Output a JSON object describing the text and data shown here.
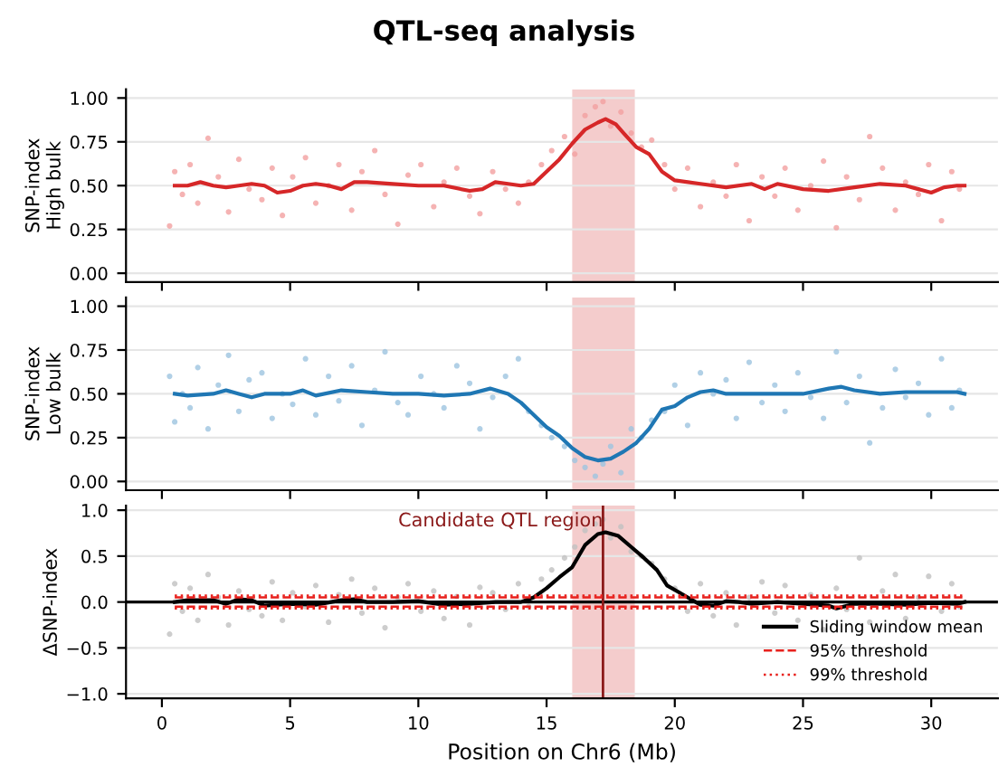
{
  "chart_data": [
    {
      "type": "scatter",
      "title": "QTL-seq analysis",
      "ylabel": "SNP-index\nHigh bulk",
      "xlim": [
        -1.4,
        32.6
      ],
      "xticks": [
        0,
        5,
        10,
        15,
        20,
        25,
        30
      ],
      "ylim": [
        -0.05,
        1.05
      ],
      "yticks": [
        {
          "value": 0,
          "label": "0.00"
        },
        {
          "value": 0.25,
          "label": "0.25"
        },
        {
          "value": 0.5,
          "label": "0.50"
        },
        {
          "value": 0.75,
          "label": "0.75"
        },
        {
          "value": 1,
          "label": "1.00"
        }
      ],
      "grid": "y",
      "tick_labels": "y",
      "bands": [
        {
          "axis": "x",
          "from": 16,
          "to": 18.44,
          "color": "#f4cccc"
        }
      ],
      "series": [
        {
          "color": "#f2a0a0",
          "x": [
            0.3,
            0.5,
            0.8,
            1.1,
            1.4,
            1.8,
            2.2,
            2.6,
            3.0,
            3.4,
            3.9,
            4.3,
            4.7,
            5.1,
            5.6,
            6.0,
            6.5,
            6.9,
            7.4,
            7.8,
            8.3,
            8.7,
            9.2,
            9.6,
            10.1,
            10.6,
            11.0,
            11.5,
            12.0,
            12.4,
            12.9,
            13.4,
            13.9,
            14.3,
            14.8,
            15.2,
            15.7,
            16.1,
            16.5,
            16.9,
            17.2,
            17.5,
            17.9,
            18.3,
            18.7,
            19.1,
            19.6,
            20.0,
            20.5,
            21.0,
            21.5,
            22.0,
            22.4,
            22.9,
            23.4,
            23.9,
            24.3,
            24.8,
            25.3,
            25.8,
            26.3,
            26.7,
            27.2,
            27.6,
            28.1,
            28.6,
            29.0,
            29.5,
            29.9,
            30.4,
            30.8,
            31.1
          ],
          "values": [
            0.27,
            0.58,
            0.45,
            0.62,
            0.4,
            0.77,
            0.55,
            0.35,
            0.65,
            0.48,
            0.42,
            0.6,
            0.33,
            0.55,
            0.66,
            0.4,
            0.5,
            0.62,
            0.36,
            0.58,
            0.7,
            0.45,
            0.28,
            0.56,
            0.62,
            0.38,
            0.52,
            0.6,
            0.44,
            0.34,
            0.58,
            0.48,
            0.4,
            0.52,
            0.62,
            0.7,
            0.78,
            0.68,
            0.9,
            0.95,
            0.98,
            0.84,
            0.92,
            0.8,
            0.72,
            0.76,
            0.62,
            0.48,
            0.6,
            0.38,
            0.52,
            0.44,
            0.62,
            0.3,
            0.55,
            0.44,
            0.6,
            0.36,
            0.5,
            0.64,
            0.26,
            0.55,
            0.42,
            0.78,
            0.6,
            0.36,
            0.52,
            0.45,
            0.62,
            0.3,
            0.58,
            0.48
          ]
        },
        {
          "type": "line",
          "color": "#d62728",
          "line_style": "solid",
          "x": [
            0.5,
            1,
            1.5,
            2,
            2.5,
            3,
            3.5,
            4,
            4.5,
            5,
            5.5,
            6,
            6.5,
            7,
            7.5,
            8,
            9,
            10,
            11,
            12,
            12.5,
            13,
            13.5,
            14,
            14.5,
            15,
            15.5,
            16,
            16.5,
            17,
            17.3,
            17.7,
            18,
            18.5,
            19,
            19.5,
            20,
            21,
            22,
            23,
            23.5,
            24,
            25,
            26,
            27,
            28,
            29,
            29.5,
            30,
            30.5,
            31,
            31.3
          ],
          "values": [
            0.5,
            0.5,
            0.52,
            0.5,
            0.49,
            0.5,
            0.51,
            0.5,
            0.46,
            0.47,
            0.5,
            0.51,
            0.5,
            0.48,
            0.52,
            0.52,
            0.51,
            0.5,
            0.5,
            0.47,
            0.48,
            0.52,
            0.51,
            0.5,
            0.51,
            0.58,
            0.65,
            0.74,
            0.82,
            0.86,
            0.88,
            0.85,
            0.8,
            0.72,
            0.68,
            0.58,
            0.53,
            0.51,
            0.49,
            0.51,
            0.48,
            0.51,
            0.48,
            0.47,
            0.49,
            0.51,
            0.5,
            0.48,
            0.46,
            0.49,
            0.5,
            0.5
          ]
        }
      ]
    },
    {
      "type": "scatter",
      "ylabel": "SNP-index\nLow bulk",
      "xlim": [
        -1.4,
        32.6
      ],
      "xticks": [
        0,
        5,
        10,
        15,
        20,
        25,
        30
      ],
      "ylim": [
        -0.05,
        1.05
      ],
      "yticks": [
        {
          "value": 0,
          "label": "0.00"
        },
        {
          "value": 0.25,
          "label": "0.25"
        },
        {
          "value": 0.5,
          "label": "0.50"
        },
        {
          "value": 0.75,
          "label": "0.75"
        },
        {
          "value": 1,
          "label": "1.00"
        }
      ],
      "grid": "y",
      "tick_labels": "y",
      "bands": [
        {
          "axis": "x",
          "from": 16,
          "to": 18.44,
          "color": "#f4cccc"
        }
      ],
      "series": [
        {
          "color": "#9ec4e0",
          "x": [
            0.3,
            0.5,
            0.8,
            1.1,
            1.4,
            1.8,
            2.2,
            2.6,
            3.0,
            3.4,
            3.9,
            4.3,
            4.7,
            5.1,
            5.6,
            6.0,
            6.5,
            6.9,
            7.4,
            7.8,
            8.3,
            8.7,
            9.2,
            9.6,
            10.1,
            10.6,
            11.0,
            11.5,
            12.0,
            12.4,
            12.9,
            13.4,
            13.9,
            14.3,
            14.8,
            15.2,
            15.7,
            16.1,
            16.5,
            16.9,
            17.2,
            17.5,
            17.9,
            18.3,
            18.7,
            19.1,
            19.6,
            20.0,
            20.5,
            21.0,
            21.5,
            22.0,
            22.4,
            22.9,
            23.4,
            23.9,
            24.3,
            24.8,
            25.3,
            25.8,
            26.3,
            26.7,
            27.2,
            27.6,
            28.1,
            28.6,
            29.0,
            29.5,
            29.9,
            30.4,
            30.8,
            31.1
          ],
          "values": [
            0.6,
            0.34,
            0.5,
            0.42,
            0.65,
            0.3,
            0.55,
            0.72,
            0.4,
            0.58,
            0.62,
            0.36,
            0.5,
            0.44,
            0.7,
            0.38,
            0.6,
            0.46,
            0.66,
            0.32,
            0.52,
            0.74,
            0.45,
            0.38,
            0.6,
            0.5,
            0.42,
            0.66,
            0.56,
            0.3,
            0.48,
            0.6,
            0.7,
            0.4,
            0.32,
            0.25,
            0.2,
            0.12,
            0.08,
            0.03,
            0.1,
            0.2,
            0.05,
            0.3,
            0.25,
            0.35,
            0.4,
            0.55,
            0.32,
            0.62,
            0.5,
            0.58,
            0.36,
            0.68,
            0.45,
            0.55,
            0.4,
            0.62,
            0.48,
            0.36,
            0.74,
            0.45,
            0.6,
            0.22,
            0.42,
            0.64,
            0.48,
            0.56,
            0.38,
            0.7,
            0.42,
            0.52
          ]
        },
        {
          "type": "line",
          "color": "#1f77b4",
          "line_style": "solid",
          "x": [
            0.5,
            1,
            2,
            2.5,
            3,
            3.5,
            4,
            5,
            5.5,
            6,
            7,
            8,
            9,
            10,
            11,
            12,
            12.8,
            13.5,
            14,
            14.5,
            15,
            15.5,
            16,
            16.5,
            17,
            17.5,
            18,
            18.5,
            19,
            19.5,
            20,
            20.5,
            21,
            21.5,
            22,
            23,
            24,
            25,
            26,
            26.5,
            27,
            28,
            29,
            30,
            31,
            31.3
          ],
          "values": [
            0.5,
            0.49,
            0.5,
            0.52,
            0.5,
            0.48,
            0.5,
            0.5,
            0.52,
            0.49,
            0.52,
            0.51,
            0.5,
            0.5,
            0.49,
            0.5,
            0.53,
            0.5,
            0.45,
            0.38,
            0.31,
            0.26,
            0.19,
            0.14,
            0.12,
            0.13,
            0.17,
            0.22,
            0.3,
            0.41,
            0.43,
            0.48,
            0.51,
            0.52,
            0.5,
            0.5,
            0.5,
            0.5,
            0.53,
            0.54,
            0.52,
            0.5,
            0.51,
            0.51,
            0.51,
            0.5
          ]
        }
      ]
    },
    {
      "type": "scatter",
      "ylabel": "ΔSNP-index",
      "xlabel": "Position on Chr6 (Mb)",
      "xlim": [
        -1.4,
        32.6
      ],
      "xticks": [
        0,
        5,
        10,
        15,
        20,
        25,
        30
      ],
      "ylim": [
        -1.05,
        1.05
      ],
      "yticks": [
        {
          "value": -1,
          "label": "−1.0"
        },
        {
          "value": -0.5,
          "label": "−0.5"
        },
        {
          "value": 0,
          "label": "0.0"
        },
        {
          "value": 0.5,
          "label": "0.5"
        },
        {
          "value": 1,
          "label": "1.0"
        }
      ],
      "grid": "y",
      "legend": "bottom right",
      "bands": [
        {
          "axis": "x",
          "from": 16,
          "to": 18.44,
          "color": "#f4cccc"
        }
      ],
      "ref_lines": [
        {
          "axis": "y",
          "value": 0,
          "color": "#000000"
        },
        {
          "axis": "x",
          "value": 17.2,
          "color": "#8b1a1a"
        }
      ],
      "annotations": [
        {
          "text": "Candidate QTL region",
          "x": 17.2,
          "y": 0.88
        }
      ],
      "series": [
        {
          "color": "#c0c0c0",
          "x": [
            0.3,
            0.5,
            0.8,
            1.1,
            1.4,
            1.8,
            2.2,
            2.6,
            3.0,
            3.4,
            3.9,
            4.3,
            4.7,
            5.1,
            5.6,
            6.0,
            6.5,
            6.9,
            7.4,
            7.8,
            8.3,
            8.7,
            9.2,
            9.6,
            10.1,
            10.6,
            11.0,
            11.5,
            12.0,
            12.4,
            12.9,
            13.4,
            13.9,
            14.3,
            14.8,
            15.2,
            15.7,
            16.1,
            16.5,
            16.9,
            17.2,
            17.5,
            17.9,
            18.3,
            18.7,
            19.1,
            19.6,
            20.0,
            20.5,
            21.0,
            21.5,
            22.0,
            22.4,
            22.9,
            23.4,
            23.9,
            24.3,
            24.8,
            25.3,
            25.8,
            26.3,
            26.7,
            27.2,
            27.6,
            28.1,
            28.6,
            29.0,
            29.5,
            29.9,
            30.4,
            30.8,
            31.1
          ],
          "values": [
            -0.35,
            0.2,
            -0.1,
            0.15,
            -0.2,
            0.3,
            0.05,
            -0.25,
            0.12,
            -0.08,
            -0.15,
            0.22,
            -0.2,
            0.1,
            -0.05,
            0.18,
            -0.22,
            0.08,
            0.25,
            -0.12,
            0.15,
            -0.28,
            0.05,
            0.2,
            -0.1,
            0.12,
            -0.18,
            0.06,
            -0.25,
            0.16,
            0.1,
            -0.08,
            0.2,
            -0.05,
            0.25,
            0.35,
            0.48,
            0.6,
            0.78,
            0.85,
            0.9,
            0.7,
            0.82,
            0.55,
            0.5,
            0.42,
            0.25,
            0.15,
            -0.1,
            0.2,
            -0.15,
            0.1,
            -0.25,
            0.05,
            0.22,
            -0.12,
            0.18,
            -0.2,
            0.08,
            -0.3,
            0.15,
            -0.08,
            0.48,
            -0.22,
            0.12,
            0.3,
            -0.18,
            0.05,
            0.28,
            -0.1,
            0.2,
            -0.05
          ]
        },
        {
          "type": "line",
          "name": "Sliding window mean",
          "color": "#000000",
          "line_style": "solid",
          "x": [
            0.5,
            1,
            2,
            2.5,
            3,
            3.5,
            4,
            5,
            6,
            7,
            7.5,
            8,
            9,
            10,
            11,
            12,
            13,
            14,
            14.5,
            15,
            15.5,
            16,
            16.5,
            17,
            17.3,
            17.8,
            18.3,
            18.8,
            19.3,
            19.7,
            20.2,
            20.5,
            21,
            21.5,
            22,
            22.5,
            23,
            24,
            25,
            26,
            26.3,
            27,
            28,
            29,
            30,
            31,
            31.3
          ],
          "values": [
            0,
            0.02,
            0.02,
            -0.02,
            0.03,
            0.02,
            -0.04,
            -0.02,
            -0.03,
            0.02,
            0.03,
            0,
            0,
            0.01,
            -0.03,
            -0.02,
            0,
            0,
            0.05,
            0.15,
            0.27,
            0.38,
            0.62,
            0.74,
            0.76,
            0.72,
            0.6,
            0.48,
            0.35,
            0.18,
            0.1,
            0.05,
            -0.03,
            -0.04,
            0.01,
            0,
            -0.02,
            0,
            -0.02,
            -0.04,
            -0.07,
            -0.02,
            -0.02,
            -0.03,
            -0.01,
            -0.02,
            0
          ]
        },
        {
          "type": "line",
          "name": "95% threshold",
          "color": "#e8211d",
          "line_style": "dashed",
          "x": [
            0.5,
            31.3
          ],
          "values": [
            0.05,
            0.05
          ]
        },
        {
          "type": "line",
          "color": "#e8211d",
          "line_style": "dashed",
          "x": [
            0.5,
            31.3
          ],
          "values": [
            -0.05,
            -0.05
          ]
        },
        {
          "type": "line",
          "name": "99% threshold",
          "color": "#e8211d",
          "line_style": "dotted",
          "x": [
            0.5,
            31.3
          ],
          "values": [
            0.07,
            0.07
          ]
        },
        {
          "type": "line",
          "color": "#e8211d",
          "line_style": "dotted",
          "x": [
            0.5,
            31.3
          ],
          "values": [
            -0.07,
            -0.07
          ]
        }
      ]
    }
  ]
}
